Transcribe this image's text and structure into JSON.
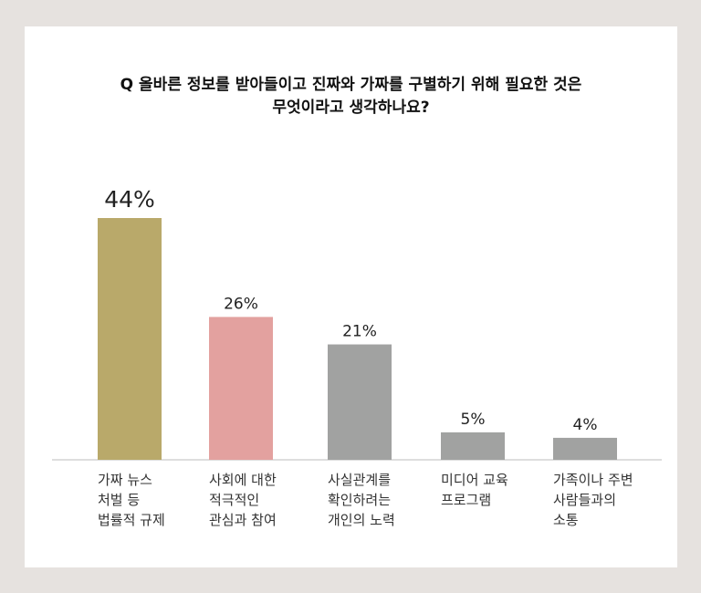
{
  "chart_data": {
    "type": "bar",
    "title_lines": [
      "Q 올바른 정보를 받아들이고 진짜와 가짜를 구별하기 위해 필요한 것은",
      "무엇이라고 생각하나요?"
    ],
    "categories": [
      "가짜 뉴스\n처벌 등\n법률적 규제",
      "사회에 대한\n적극적인\n관심과 참여",
      "사실관계를\n확인하려는\n개인의 노력",
      "미디어 교육\n프로그램",
      "가족이나 주변\n사람들과의\n소통"
    ],
    "values": [
      44,
      26,
      21,
      5,
      4
    ],
    "value_labels": [
      "44%",
      "26%",
      "21%",
      "5%",
      "4%"
    ],
    "colors": [
      "#b9a96a",
      "#e3a19f",
      "#a1a2a1",
      "#a1a2a1",
      "#a1a2a1"
    ],
    "unit": "%",
    "ylim": [
      0,
      44
    ]
  }
}
